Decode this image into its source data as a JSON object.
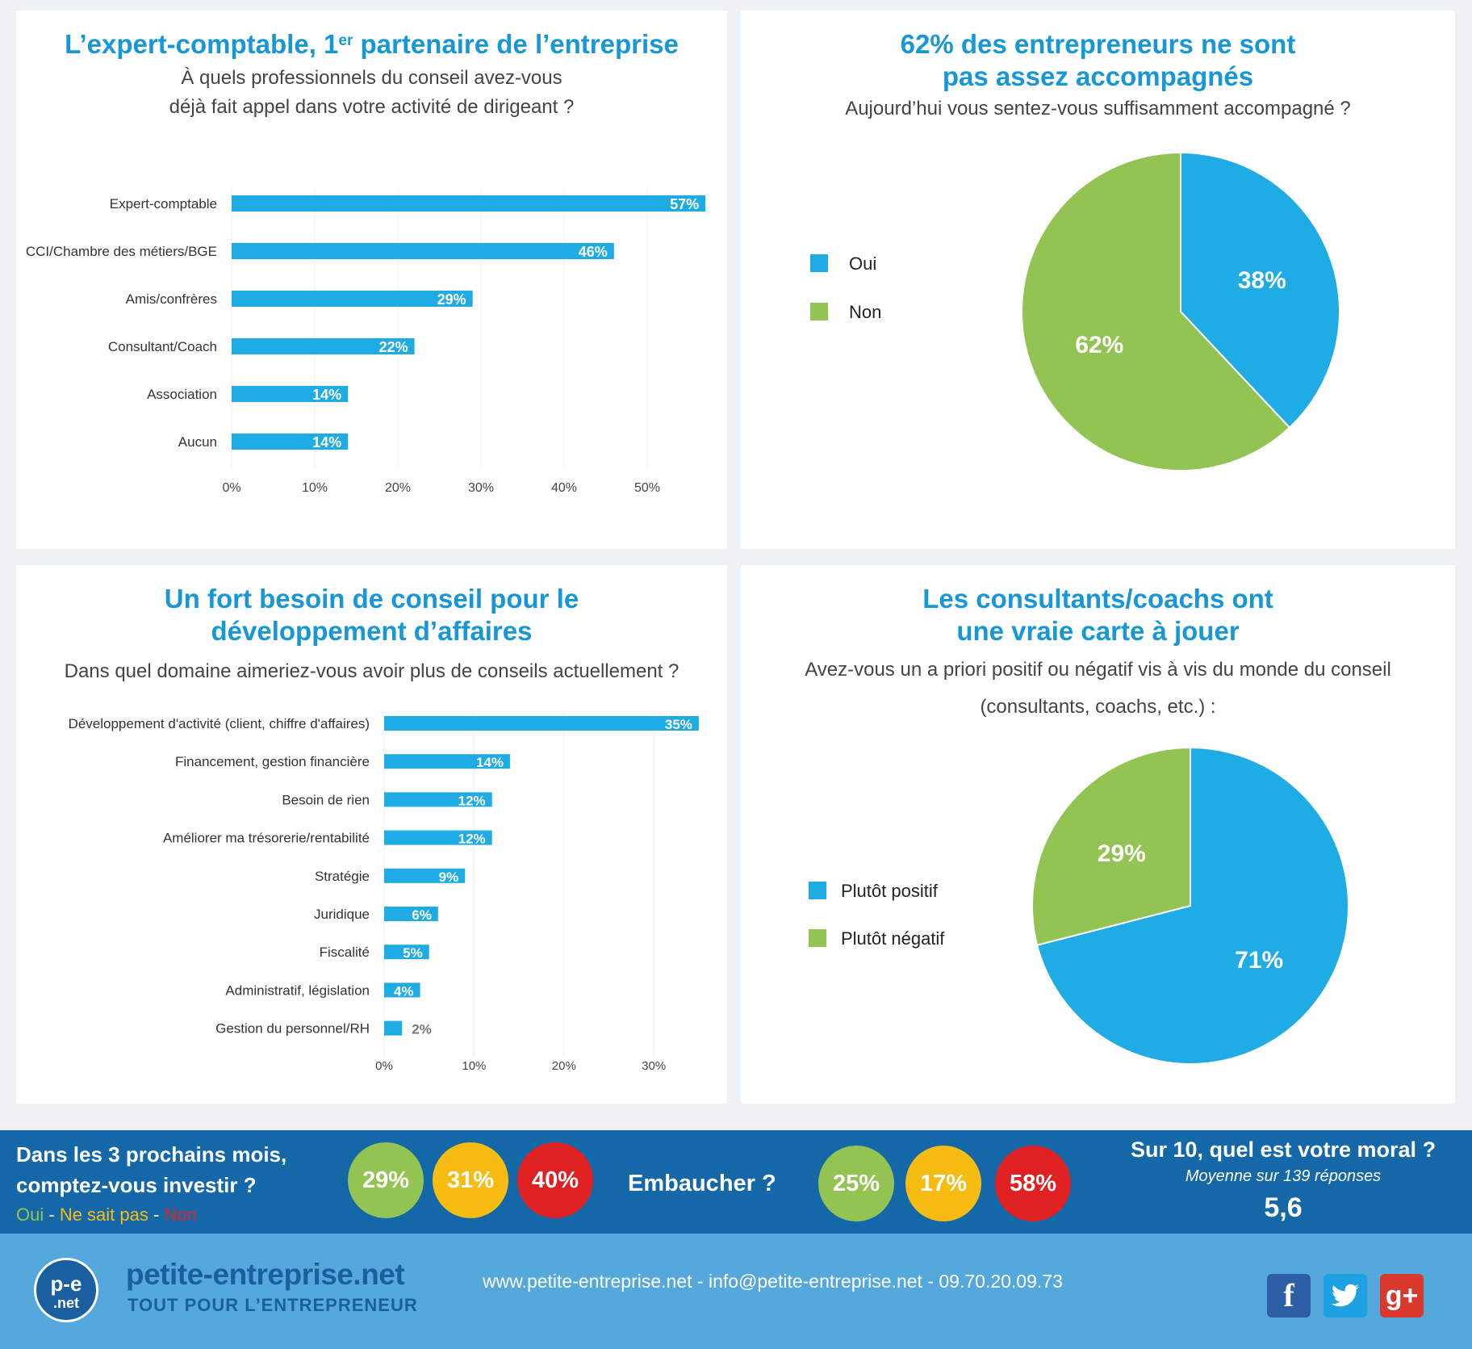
{
  "panel1": {
    "title_pre": "L’expert-comptable, 1",
    "title_sup": "er",
    "title_post": " partenaire de l’entreprise",
    "subtitle_line1": "À quels professionnels du conseil avez-vous",
    "subtitle_line2": "déjà fait appel dans votre activité de dirigeant ?"
  },
  "panel2": {
    "title_line1": "62% des entrepreneurs ne sont",
    "title_line2": "pas assez accompagnés",
    "subtitle": "Aujourd’hui vous sentez-vous suffisamment accompagné ?"
  },
  "panel3": {
    "title_line1": "Un fort besoin de conseil pour le",
    "title_line2": "développement d’affaires",
    "subtitle": "Dans quel domaine aimeriez-vous avoir plus de conseils actuellement ?"
  },
  "panel4": {
    "title_line1": "Les consultants/coachs ont",
    "title_line2": "une vraie carte à jouer",
    "subtitle_line1": "Avez-vous un a priori positif ou négatif vis à vis du monde du conseil",
    "subtitle_line2": "(consultants, coachs, etc.) :"
  },
  "colors": {
    "blue": "#1fabe3",
    "green": "#92c353",
    "yellow": "#f7bc12",
    "red": "#e02124",
    "title": "#1797d6"
  },
  "chart_data": [
    {
      "type": "bar",
      "orientation": "horizontal",
      "categories": [
        "Expert-comptable",
        "CCI/Chambre des métiers/BGE",
        "Amis/confrères",
        "Consultant/Coach",
        "Association",
        "Aucun"
      ],
      "values": [
        57,
        46,
        29,
        22,
        14,
        14
      ],
      "data_labels": [
        "57%",
        "46%",
        "29%",
        "22%",
        "14%",
        "14%"
      ],
      "xlim": [
        0,
        57
      ],
      "ticks": [
        0,
        10,
        20,
        30,
        40,
        50
      ],
      "tick_labels": [
        "0%",
        "10%",
        "20%",
        "30%",
        "40%",
        "50%"
      ],
      "grid": true
    },
    {
      "type": "pie",
      "labels": [
        "Oui",
        "Non"
      ],
      "values": [
        38,
        62
      ],
      "data_labels": [
        "38%",
        "62%"
      ],
      "colors": [
        "#1fabe3",
        "#92c353"
      ],
      "legend": "left"
    },
    {
      "type": "bar",
      "orientation": "horizontal",
      "categories": [
        "Développement d'activité (client, chiffre d'affaires)",
        "Financement, gestion financière",
        "Besoin de rien",
        "Améliorer ma trésorerie/rentabilité",
        "Stratégie",
        "Juridique",
        "Fiscalité",
        "Administratif, législation",
        "Gestion du personnel/RH"
      ],
      "values": [
        35,
        14,
        12,
        12,
        9,
        6,
        5,
        4,
        2
      ],
      "data_labels": [
        "35%",
        "14%",
        "12%",
        "12%",
        "9%",
        "6%",
        "5%",
        "4%",
        "2%"
      ],
      "xlim": [
        0,
        35
      ],
      "ticks": [
        0,
        10,
        20,
        30
      ],
      "tick_labels": [
        "0%",
        "10%",
        "20%",
        "30%"
      ],
      "grid": true
    },
    {
      "type": "pie",
      "labels": [
        "Plutôt positif",
        "Plutôt négatif"
      ],
      "values": [
        71,
        29
      ],
      "data_labels": [
        "71%",
        "29%"
      ],
      "colors": [
        "#1fabe3",
        "#92c353"
      ],
      "legend": "left"
    }
  ],
  "band": {
    "invest_q_line1": "Dans les 3 prochains mois,",
    "invest_q_line2": "comptez-vous investir ?",
    "answer_oui": "Oui",
    "answer_sep1": " - ",
    "answer_nsp": "Ne sait pas",
    "answer_sep2": " - ",
    "answer_non": "Non",
    "invest_oui": "29%",
    "invest_nsp": "31%",
    "invest_non": "40%",
    "hire_q": "Embaucher ?",
    "hire_oui": "25%",
    "hire_nsp": "17%",
    "hire_non": "58%",
    "moral_q": "Sur 10, quel est votre moral ?",
    "moral_sub": "Moyenne sur 139 réponses",
    "moral_value": "5,6"
  },
  "footer": {
    "logo_top": "p-e",
    "logo_bottom": ".net",
    "brand": "petite-entreprise.net",
    "tagline": "TOUT POUR L’ENTREPRENEUR",
    "contact": "www.petite-entreprise.net - info@petite-entreprise.net - 09.70.20.09.73",
    "icons": [
      "facebook-icon",
      "twitter-icon",
      "google-plus-icon"
    ]
  }
}
